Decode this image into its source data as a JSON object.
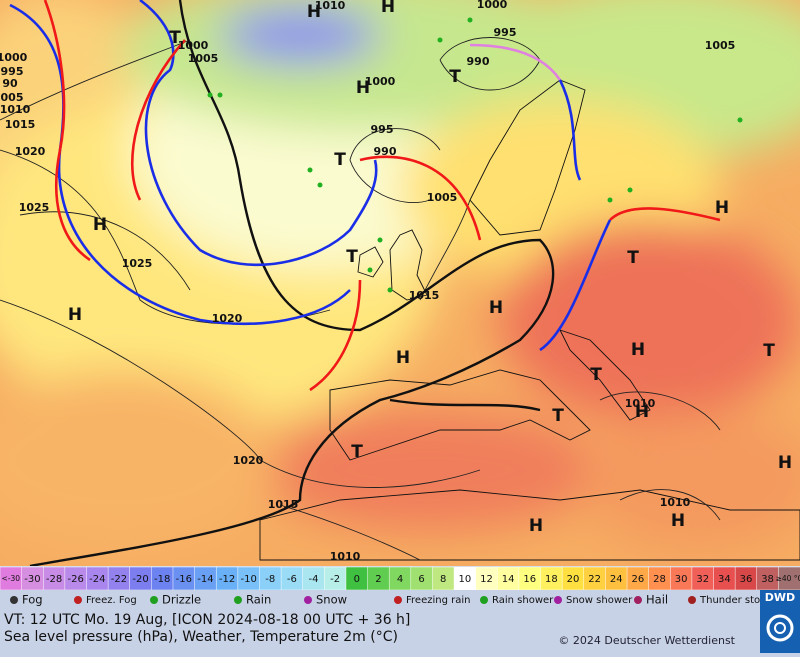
{
  "map": {
    "isobar_labels": [
      "1010",
      "1000",
      "1005",
      "1000",
      "995",
      "990",
      "1005",
      "1000",
      "995",
      "990",
      "1005",
      "1015",
      "1020",
      "1025",
      "1025",
      "1020",
      "1015",
      "1020",
      "1015",
      "1010",
      "1010",
      "1010",
      "995",
      "1000",
      "005",
      "1010",
      "90"
    ],
    "pressure_centers": [
      "H",
      "H",
      "H",
      "H",
      "H",
      "H",
      "H",
      "H",
      "H",
      "H",
      "H",
      "H",
      "H",
      "T",
      "T",
      "T",
      "T",
      "T",
      "T",
      "T",
      "T",
      "T"
    ]
  },
  "scale": {
    "labels": [
      "<-30",
      "-30",
      "-28",
      "-26",
      "-24",
      "-22",
      "-20",
      "-18",
      "-16",
      "-14",
      "-12",
      "-10",
      "-8",
      "-6",
      "-4",
      "-2",
      "0",
      "2",
      "4",
      "6",
      "8",
      "10",
      "12",
      "14",
      "16",
      "18",
      "20",
      "22",
      "24",
      "26",
      "28",
      "30",
      "32",
      "34",
      "36",
      "38",
      "≥40 °C"
    ],
    "colors": [
      "#e07ce0",
      "#d58ee0",
      "#c88ce6",
      "#b98aea",
      "#a986ee",
      "#9382ee",
      "#7c7ef0",
      "#6c82f0",
      "#6a90f2",
      "#6aa0f4",
      "#6ab0f6",
      "#7ac0f8",
      "#8ad0f8",
      "#9adcf6",
      "#aae6f0",
      "#b8eee8",
      "#40c040",
      "#60cc50",
      "#80d860",
      "#a0e070",
      "#c0e880",
      "#ffffff",
      "#ffffc0",
      "#ffffa0",
      "#ffff80",
      "#fff060",
      "#ffe040",
      "#ffd040",
      "#ffc040",
      "#ffa848",
      "#ff9050",
      "#f87858",
      "#f06058",
      "#e85050",
      "#d84848",
      "#c06060",
      "#a07070"
    ]
  },
  "legend": [
    "Fog",
    "Freez. Fog",
    "Drizzle",
    "Rain",
    "Snow",
    "Freezing rain",
    "Rain shower",
    "Snow shower",
    "Hail",
    "Thunder storm"
  ],
  "footer": {
    "valid_time": "VT: 12 UTC Mo.  19 Aug, [ICON 2024-08-18  00 UTC + 36 h]",
    "description": "Sea level pressure (hPa), Weather, Temperature 2m (°C)",
    "copyright": "© 2024 Deutscher Wetterdienst",
    "logo": "DWD"
  }
}
